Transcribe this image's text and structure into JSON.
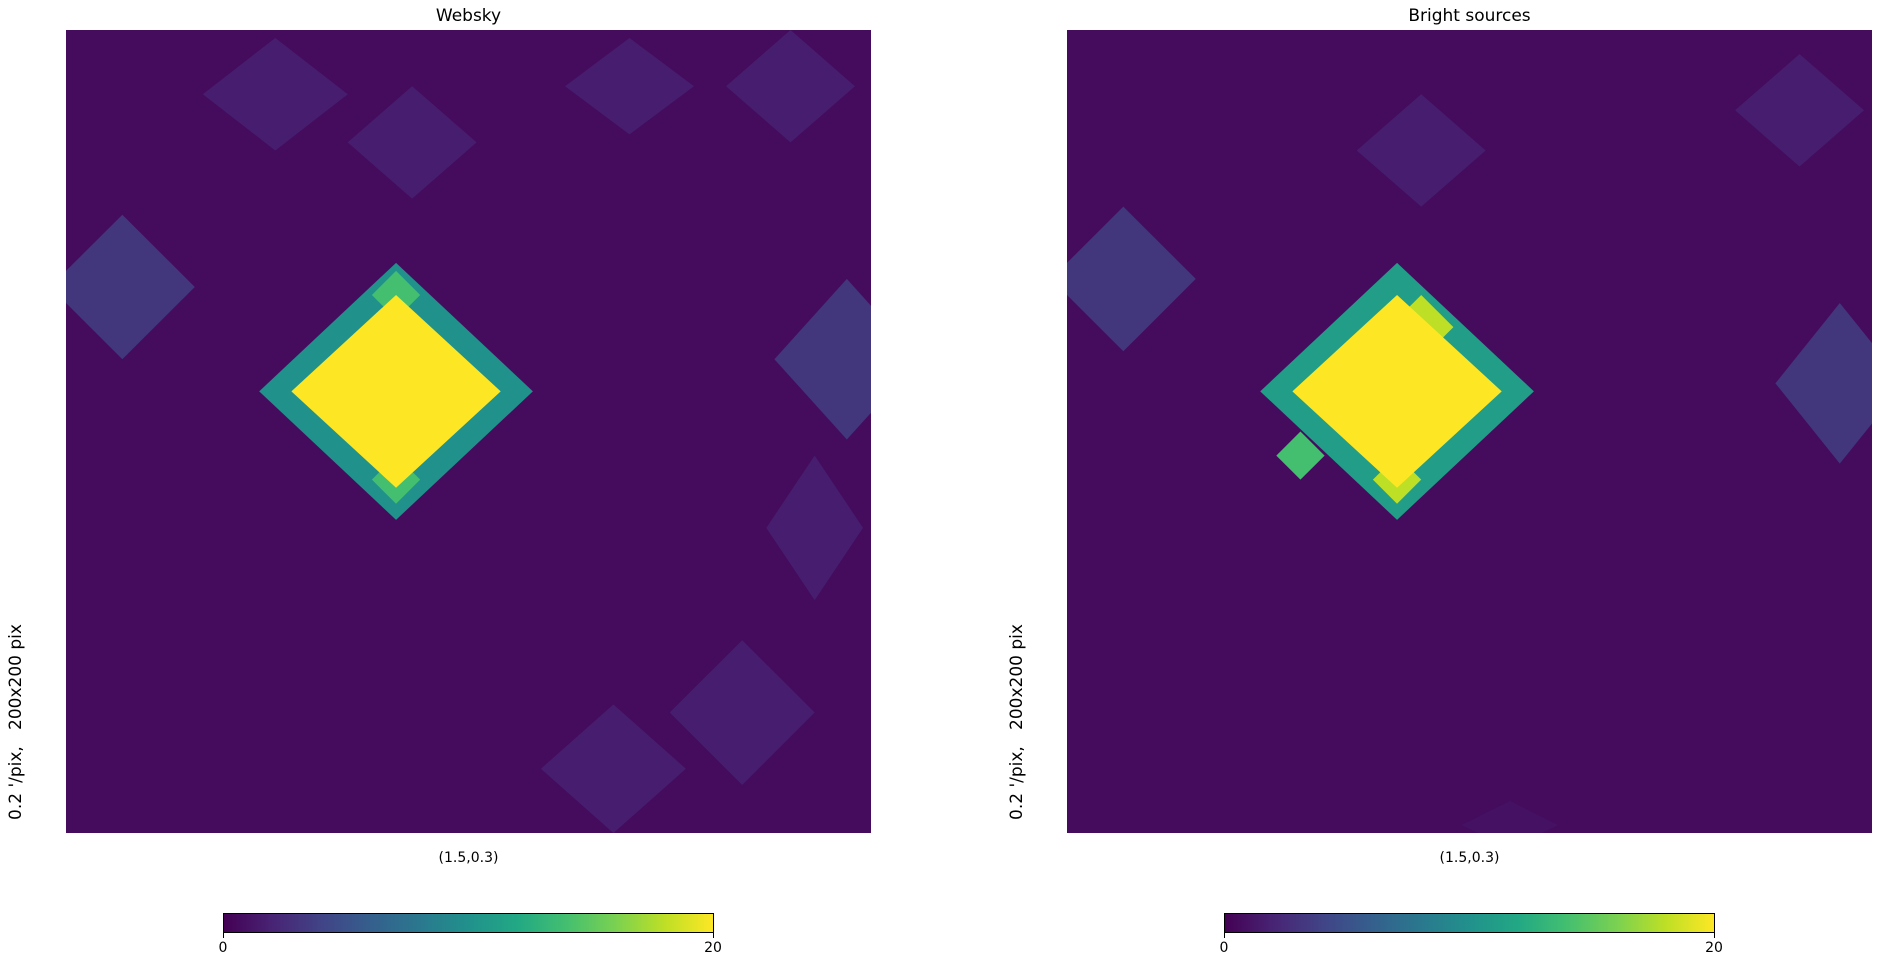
{
  "chart_data": [
    {
      "type": "heatmap",
      "title": "Websky",
      "xlabel": "(1.5,0.3)",
      "ylabel": "0.2 '/pix,   200x200 pix",
      "colormap": "viridis",
      "clim": [
        0,
        20
      ],
      "colorbar_ticks": [
        "0",
        "20"
      ],
      "grid": false,
      "features": [
        {
          "x": 0.41,
          "y": 0.45,
          "rx": 0.13,
          "ry": 0.12,
          "value": 20
        },
        {
          "x": 0.41,
          "y": 0.45,
          "rx": 0.17,
          "ry": 0.16,
          "value": 10
        },
        {
          "x": 0.41,
          "y": 0.33,
          "rx": 0.03,
          "ry": 0.03,
          "value": 14
        },
        {
          "x": 0.41,
          "y": 0.56,
          "rx": 0.03,
          "ry": 0.03,
          "value": 14
        },
        {
          "x": 0.07,
          "y": 0.32,
          "rx": 0.09,
          "ry": 0.09,
          "value": 4
        },
        {
          "x": 0.97,
          "y": 0.41,
          "rx": 0.09,
          "ry": 0.1,
          "value": 4
        },
        {
          "x": 0.26,
          "y": 0.08,
          "rx": 0.09,
          "ry": 0.07,
          "value": 2
        },
        {
          "x": 0.43,
          "y": 0.14,
          "rx": 0.08,
          "ry": 0.07,
          "value": 2
        },
        {
          "x": 0.7,
          "y": 0.07,
          "rx": 0.08,
          "ry": 0.06,
          "value": 2
        },
        {
          "x": 0.9,
          "y": 0.07,
          "rx": 0.08,
          "ry": 0.07,
          "value": 2
        },
        {
          "x": 0.84,
          "y": 0.85,
          "rx": 0.09,
          "ry": 0.09,
          "value": 2
        },
        {
          "x": 0.68,
          "y": 0.92,
          "rx": 0.09,
          "ry": 0.08,
          "value": 2
        },
        {
          "x": 0.93,
          "y": 0.62,
          "rx": 0.06,
          "ry": 0.09,
          "value": 2
        }
      ]
    },
    {
      "type": "heatmap",
      "title": "Bright sources",
      "xlabel": "(1.5,0.3)",
      "ylabel": "0.2 '/pix,   200x200 pix",
      "colormap": "viridis",
      "clim": [
        0,
        20
      ],
      "colorbar_ticks": [
        "0",
        "20"
      ],
      "grid": false,
      "features": [
        {
          "x": 0.41,
          "y": 0.45,
          "rx": 0.13,
          "ry": 0.12,
          "value": 20
        },
        {
          "x": 0.41,
          "y": 0.45,
          "rx": 0.17,
          "ry": 0.16,
          "value": 11
        },
        {
          "x": 0.44,
          "y": 0.37,
          "rx": 0.04,
          "ry": 0.04,
          "value": 18
        },
        {
          "x": 0.41,
          "y": 0.56,
          "rx": 0.03,
          "ry": 0.03,
          "value": 18
        },
        {
          "x": 0.29,
          "y": 0.53,
          "rx": 0.03,
          "ry": 0.03,
          "value": 14
        },
        {
          "x": 0.07,
          "y": 0.31,
          "rx": 0.09,
          "ry": 0.09,
          "value": 4
        },
        {
          "x": 0.96,
          "y": 0.44,
          "rx": 0.08,
          "ry": 0.1,
          "value": 4
        },
        {
          "x": 0.44,
          "y": 0.15,
          "rx": 0.08,
          "ry": 0.07,
          "value": 2
        },
        {
          "x": 0.91,
          "y": 0.1,
          "rx": 0.08,
          "ry": 0.07,
          "value": 2
        },
        {
          "x": 0.55,
          "y": 0.99,
          "rx": 0.06,
          "ry": 0.03,
          "value": 1
        }
      ]
    }
  ]
}
